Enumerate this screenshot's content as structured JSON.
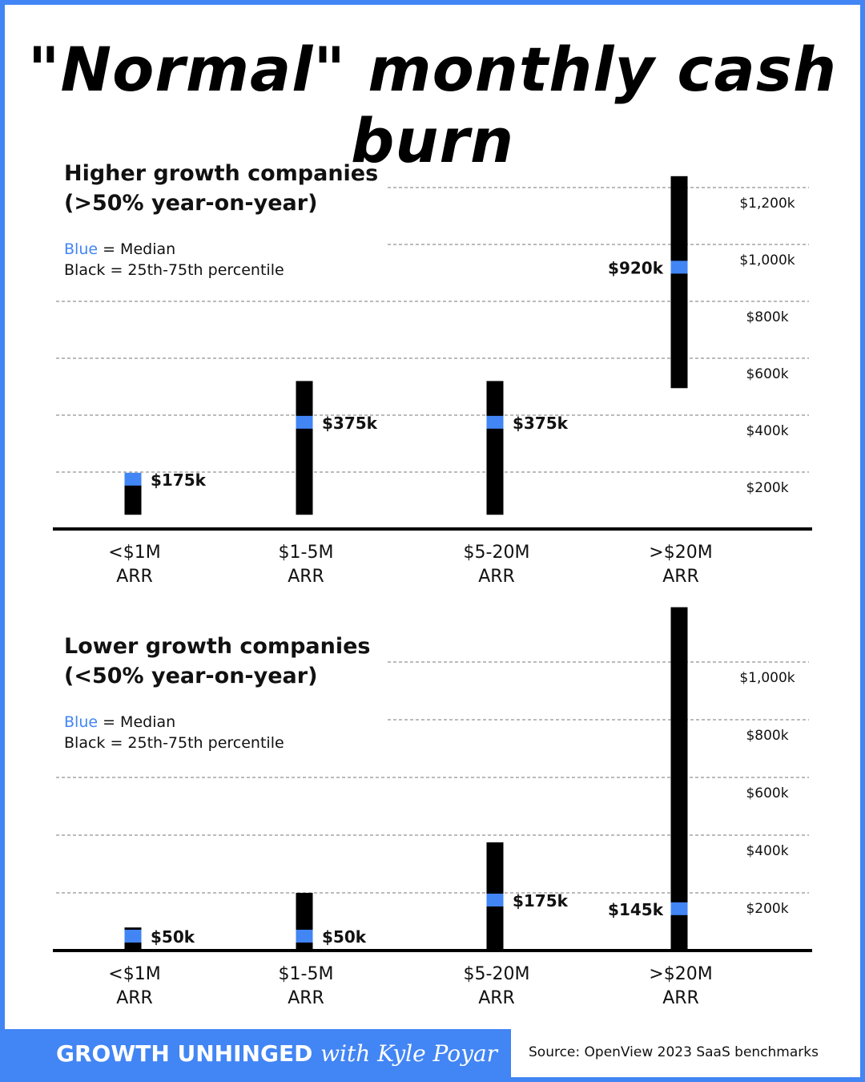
{
  "title": "\"Normal\" monthly cash burn",
  "legend": {
    "blue_word": "Blue",
    "blue_rest": " = Median",
    "black": "Black = 25th-75th percentile"
  },
  "colors": {
    "median": "#4285f4",
    "range": "#000000",
    "accent": "#4285f4"
  },
  "footer": {
    "brand": "GROWTH UNHINGED",
    "with": "with Kyle Poyar",
    "source": "Source: OpenView 2023 SaaS benchmarks"
  },
  "chart_data": [
    {
      "type": "range-bar",
      "title_line1": "Higher growth companies",
      "title_line2": "(>50% year-on-year)",
      "categories": [
        [
          "<$1M",
          "ARR"
        ],
        [
          "$1-5M",
          "ARR"
        ],
        [
          "$5-20M",
          "ARR"
        ],
        [
          ">$20M",
          "ARR"
        ]
      ],
      "y_ticks": [
        200,
        400,
        600,
        800,
        1000,
        1200
      ],
      "y_tick_labels": [
        "$200k",
        "$400k",
        "$600k",
        "$800k",
        "$1,000k",
        "$1,200k"
      ],
      "ylim": [
        0,
        1250
      ],
      "grid": true,
      "p25": [
        50,
        50,
        50,
        495
      ],
      "p75": [
        185,
        520,
        520,
        1240
      ],
      "median": [
        175,
        375,
        375,
        920
      ],
      "median_labels": [
        "$175k",
        "$375k",
        "$375k",
        "$920k"
      ]
    },
    {
      "type": "range-bar",
      "title_line1": "Lower growth companies",
      "title_line2": "(<50% year-on-year)",
      "categories": [
        [
          "<$1M",
          "ARR"
        ],
        [
          "$1-5M",
          "ARR"
        ],
        [
          "$5-20M",
          "ARR"
        ],
        [
          ">$20M",
          "ARR"
        ]
      ],
      "y_ticks": [
        200,
        400,
        600,
        800,
        1000
      ],
      "y_tick_labels": [
        "$200k",
        "$400k",
        "$600k",
        "$800k",
        "$1,000k"
      ],
      "ylim": [
        0,
        1200
      ],
      "grid": true,
      "p25": [
        5,
        5,
        5,
        5
      ],
      "p75": [
        80,
        200,
        375,
        1190
      ],
      "median": [
        50,
        50,
        175,
        145
      ],
      "median_labels": [
        "$50k",
        "$50k",
        "$175k",
        "$145k"
      ]
    }
  ]
}
